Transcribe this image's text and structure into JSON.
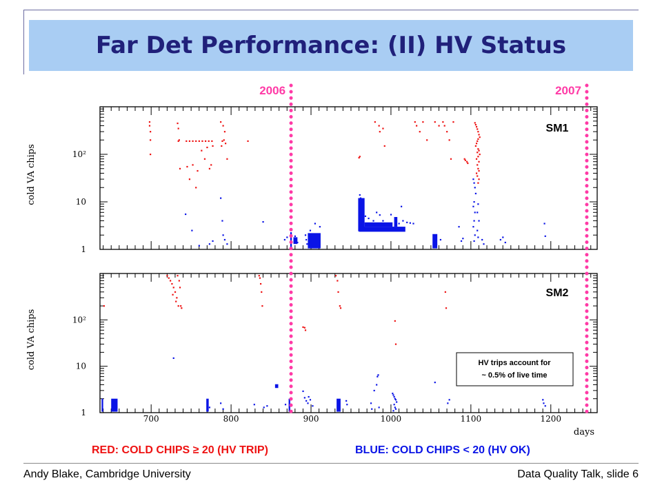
{
  "slide": {
    "title": "Far Det Performance: (II) HV Status",
    "footer_left": "Andy Blake, Cambridge University",
    "footer_right": "Data Quality Talk, slide 6",
    "legend_red": "RED:  COLD CHIPS ≥ 20 (HV TRIP)",
    "legend_blue": "BLUE:  COLD CHIPS < 20 (HV OK)",
    "year_labels": [
      {
        "text": "2006",
        "x": 875
      },
      {
        "text": "2007",
        "x": 1245
      }
    ],
    "note": [
      "HV trips account for",
      "~ 0.5% of live time"
    ]
  },
  "colors": {
    "title_bg": "#a9cdf3",
    "title_text": "#20207a",
    "red": "#ee1111",
    "blue": "#0a14e6",
    "year_marker": "#ff3aa6",
    "frame": "#6a6aa0"
  },
  "chart_data": {
    "type": "scatter",
    "xlabel": "days",
    "ylabel": "cold VA chips",
    "xlim": [
      636,
      1258
    ],
    "ylim": [
      1,
      1000
    ],
    "log_y": true,
    "x_ticks": [
      700,
      800,
      900,
      1000,
      1100,
      1200
    ],
    "y_tick_labels": [
      {
        "value": 1,
        "text": "1"
      },
      {
        "value": 10,
        "text": "10"
      },
      {
        "value": 100,
        "text": "10²"
      }
    ],
    "vlines": [
      875,
      1245
    ],
    "panels": [
      {
        "name": "SM1",
        "red_points": [
          [
            698,
            480
          ],
          [
            698,
            400
          ],
          [
            699,
            300
          ],
          [
            699,
            200
          ],
          [
            699,
            100
          ],
          [
            733,
            450
          ],
          [
            734,
            350
          ],
          [
            735,
            200
          ],
          [
            734,
            190
          ],
          [
            736,
            50
          ],
          [
            744,
            190
          ],
          [
            748,
            190
          ],
          [
            752,
            190
          ],
          [
            756,
            190
          ],
          [
            760,
            190
          ],
          [
            764,
            190
          ],
          [
            768,
            190
          ],
          [
            772,
            190
          ],
          [
            776,
            190
          ],
          [
            745,
            55
          ],
          [
            748,
            30
          ],
          [
            752,
            60
          ],
          [
            756,
            20
          ],
          [
            758,
            45
          ],
          [
            763,
            120
          ],
          [
            767,
            80
          ],
          [
            770,
            140
          ],
          [
            773,
            50
          ],
          [
            775,
            60
          ],
          [
            777,
            150
          ],
          [
            787,
            480
          ],
          [
            790,
            400
          ],
          [
            792,
            300
          ],
          [
            789,
            190
          ],
          [
            791,
            200
          ],
          [
            793,
            170
          ],
          [
            795,
            80
          ],
          [
            788,
            150
          ],
          [
            821,
            190
          ],
          [
            960,
            85
          ],
          [
            961,
            90
          ],
          [
            980,
            480
          ],
          [
            985,
            400
          ],
          [
            990,
            350
          ],
          [
            986,
            300
          ],
          [
            992,
            150
          ],
          [
            1030,
            480
          ],
          [
            1032,
            400
          ],
          [
            1036,
            300
          ],
          [
            1040,
            480
          ],
          [
            1045,
            200
          ],
          [
            1055,
            480
          ],
          [
            1060,
            400
          ],
          [
            1065,
            480
          ],
          [
            1067,
            400
          ],
          [
            1070,
            300
          ],
          [
            1073,
            200
          ],
          [
            1075,
            80
          ],
          [
            1078,
            480
          ],
          [
            1092,
            80
          ],
          [
            1093,
            75
          ],
          [
            1095,
            70
          ],
          [
            1096,
            65
          ],
          [
            1105,
            460
          ],
          [
            1106,
            420
          ],
          [
            1107,
            380
          ],
          [
            1108,
            340
          ],
          [
            1109,
            300
          ],
          [
            1110,
            260
          ],
          [
            1111,
            230
          ],
          [
            1109,
            210
          ],
          [
            1108,
            190
          ],
          [
            1107,
            170
          ],
          [
            1106,
            150
          ],
          [
            1109,
            130
          ],
          [
            1110,
            120
          ],
          [
            1108,
            110
          ],
          [
            1111,
            100
          ],
          [
            1109,
            90
          ],
          [
            1107,
            80
          ],
          [
            1110,
            70
          ],
          [
            1108,
            60
          ],
          [
            1109,
            50
          ],
          [
            1110,
            45
          ],
          [
            1107,
            40
          ],
          [
            1108,
            35
          ],
          [
            1110,
            30
          ],
          [
            1109,
            25
          ]
        ],
        "blue_points": [
          [
            743,
            5.5
          ],
          [
            751,
            2.5
          ],
          [
            760,
            1.2
          ],
          [
            773,
            1.3
          ],
          [
            777,
            1.5
          ],
          [
            787,
            12
          ],
          [
            789,
            4
          ],
          [
            790,
            2
          ],
          [
            792,
            1.6
          ],
          [
            795,
            1.3
          ],
          [
            840,
            3.8
          ],
          [
            867,
            1.6
          ],
          [
            870,
            1.8
          ],
          [
            880,
            1.9
          ],
          [
            883,
            1.4
          ],
          [
            893,
            2
          ],
          [
            894,
            1.6
          ],
          [
            895,
            1.3
          ],
          [
            897,
            1.9
          ],
          [
            899,
            2.5
          ],
          [
            901,
            1.8
          ],
          [
            903,
            1.5
          ],
          [
            905,
            3.5
          ],
          [
            907,
            2
          ],
          [
            909,
            1.6
          ],
          [
            911,
            3
          ],
          [
            961,
            14
          ],
          [
            962,
            12
          ],
          [
            963,
            10
          ],
          [
            964,
            8
          ],
          [
            962,
            6
          ],
          [
            963,
            5
          ],
          [
            965,
            4
          ],
          [
            961,
            3.8
          ],
          [
            964,
            3.5
          ],
          [
            968,
            5
          ],
          [
            972,
            4.5
          ],
          [
            978,
            4
          ],
          [
            982,
            6
          ],
          [
            986,
            5.3
          ],
          [
            990,
            4
          ],
          [
            1000,
            5.4
          ],
          [
            1006,
            4
          ],
          [
            1010,
            3.5
          ],
          [
            1013,
            8
          ],
          [
            1015,
            4
          ],
          [
            1020,
            3.7
          ],
          [
            1024,
            3.6
          ],
          [
            1028,
            3.5
          ],
          [
            1054,
            1.5
          ],
          [
            1056,
            1.2
          ],
          [
            1062,
            1.6
          ],
          [
            1085,
            3
          ],
          [
            1088,
            1.5
          ],
          [
            1090,
            1.7
          ],
          [
            1103,
            30
          ],
          [
            1104,
            25
          ],
          [
            1105,
            20
          ],
          [
            1106,
            15
          ],
          [
            1104,
            10
          ],
          [
            1103,
            8
          ],
          [
            1105,
            6
          ],
          [
            1104,
            4
          ],
          [
            1103,
            3
          ],
          [
            1105,
            2
          ],
          [
            1104,
            1.5
          ],
          [
            1108,
            6
          ],
          [
            1109,
            9
          ],
          [
            1110,
            4
          ],
          [
            1108,
            2.5
          ],
          [
            1109,
            1.8
          ],
          [
            1114,
            1.6
          ],
          [
            1116,
            1.3
          ],
          [
            1137,
            1.6
          ],
          [
            1140,
            1.8
          ],
          [
            1143,
            1.4
          ],
          [
            1192,
            3.5
          ],
          [
            1193,
            1.9
          ]
        ],
        "blue_blocks": [
          {
            "x0": 874,
            "x1": 876,
            "y0": 1.1,
            "y1": 2.3
          },
          {
            "x0": 878,
            "x1": 883,
            "y0": 1.3,
            "y1": 1.8
          },
          {
            "x0": 896,
            "x1": 912,
            "y0": 1.05,
            "y1": 2.2
          },
          {
            "x0": 959,
            "x1": 967,
            "y0": 2.4,
            "y1": 12
          },
          {
            "x0": 960,
            "x1": 1018,
            "y0": 2.35,
            "y1": 3.0
          },
          {
            "x0": 967,
            "x1": 1002,
            "y0": 3.0,
            "y1": 3.7
          },
          {
            "x0": 1004,
            "x1": 1008,
            "y0": 3.0,
            "y1": 4.8
          },
          {
            "x0": 1052,
            "x1": 1058,
            "y0": 1.05,
            "y1": 2.1
          }
        ]
      },
      {
        "name": "SM2",
        "red_points": [
          [
            641,
            200
          ],
          [
            720,
            900
          ],
          [
            722,
            800
          ],
          [
            724,
            700
          ],
          [
            726,
            600
          ],
          [
            728,
            500
          ],
          [
            730,
            400
          ],
          [
            732,
            300
          ],
          [
            734,
            200
          ],
          [
            727,
            350
          ],
          [
            731,
            250
          ],
          [
            733,
            900
          ],
          [
            735,
            700
          ],
          [
            736,
            500
          ],
          [
            737,
            200
          ],
          [
            738,
            180
          ],
          [
            835,
            900
          ],
          [
            836,
            800
          ],
          [
            837,
            600
          ],
          [
            838,
            400
          ],
          [
            839,
            200
          ],
          [
            890,
            70
          ],
          [
            892,
            68
          ],
          [
            893,
            60
          ],
          [
            931,
            900
          ],
          [
            933,
            700
          ],
          [
            934,
            400
          ],
          [
            936,
            200
          ],
          [
            937,
            180
          ],
          [
            1005,
            95
          ],
          [
            1006,
            30
          ],
          [
            1068,
            400
          ],
          [
            1069,
            180
          ]
        ],
        "blue_points": [
          [
            728,
            15
          ],
          [
            773,
            1.3
          ],
          [
            787,
            1.6
          ],
          [
            790,
            1.2
          ],
          [
            829,
            1.5
          ],
          [
            841,
            1.3
          ],
          [
            845,
            1.4
          ],
          [
            868,
            1.5
          ],
          [
            890,
            2.9
          ],
          [
            892,
            2.1
          ],
          [
            894,
            1.8
          ],
          [
            896,
            1.6
          ],
          [
            897,
            2.2
          ],
          [
            899,
            1.9
          ],
          [
            902,
            1.4
          ],
          [
            944,
            1.8
          ],
          [
            945,
            1.5
          ],
          [
            975,
            1.6
          ],
          [
            976,
            1.2
          ],
          [
            979,
            3
          ],
          [
            982,
            4
          ],
          [
            983,
            6
          ],
          [
            984,
            6.5
          ],
          [
            985,
            1.3
          ],
          [
            1002,
            2.6
          ],
          [
            1003,
            2.4
          ],
          [
            1004,
            2.2
          ],
          [
            1005,
            2.0
          ],
          [
            1006,
            1.9
          ],
          [
            1007,
            1.7
          ],
          [
            1004,
            1.5
          ],
          [
            1005,
            1.3
          ],
          [
            1006,
            1.2
          ],
          [
            1003,
            1.1
          ],
          [
            1055,
            4.5
          ],
          [
            1071,
            1.6
          ],
          [
            1073,
            1.9
          ],
          [
            1190,
            1.9
          ],
          [
            1191,
            1.6
          ],
          [
            1193,
            1.4
          ]
        ],
        "blue_blocks": [
          {
            "x0": 638,
            "x1": 640,
            "y0": 1.05,
            "y1": 2.0
          },
          {
            "x0": 650,
            "x1": 658,
            "y0": 1.05,
            "y1": 2.0
          },
          {
            "x0": 769,
            "x1": 772,
            "y0": 1.05,
            "y1": 2.0
          },
          {
            "x0": 855,
            "x1": 859,
            "y0": 3.4,
            "y1": 4.1
          },
          {
            "x0": 872,
            "x1": 874,
            "y0": 1.05,
            "y1": 2.0
          },
          {
            "x0": 932,
            "x1": 937,
            "y0": 1.05,
            "y1": 2.0
          }
        ]
      }
    ]
  }
}
